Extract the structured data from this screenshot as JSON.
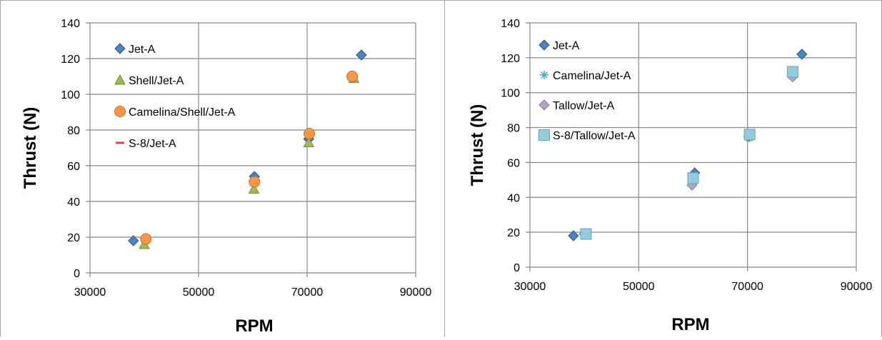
{
  "chart_data": [
    {
      "type": "scatter",
      "title": "",
      "xlabel": "RPM",
      "ylabel": "Thrust (N)",
      "xlim": [
        30000,
        90000
      ],
      "ylim": [
        0,
        140
      ],
      "xticks": [
        30000,
        50000,
        70000,
        90000
      ],
      "yticks": [
        0,
        20,
        40,
        60,
        80,
        100,
        120,
        140
      ],
      "grid": true,
      "legend_position": "top-left inside",
      "series": [
        {
          "name": "Jet-A",
          "marker": "diamond",
          "color": "#4f81bd",
          "points": [
            [
              38000,
              18
            ],
            [
              60300,
              54
            ],
            [
              70300,
              75
            ],
            [
              80000,
              122
            ]
          ]
        },
        {
          "name": "Shell/Jet-A",
          "marker": "triangle",
          "color": "#9bbb59",
          "points": [
            [
              40000,
              16
            ],
            [
              60200,
              47
            ],
            [
              70300,
              73
            ],
            [
              78600,
              109
            ]
          ]
        },
        {
          "name": "Camelina/Shell/Jet-A",
          "marker": "circle",
          "color": "#f79646",
          "points": [
            [
              40300,
              19
            ],
            [
              60300,
              51
            ],
            [
              70400,
              78
            ],
            [
              78300,
              110
            ]
          ]
        },
        {
          "name": "S-8/Jet-A",
          "marker": "dash",
          "color": "#c0504d",
          "points": []
        }
      ]
    },
    {
      "type": "scatter",
      "title": "",
      "xlabel": "RPM",
      "ylabel": "Thrust (N)",
      "xlim": [
        30000,
        90000
      ],
      "ylim": [
        0,
        140
      ],
      "xticks": [
        30000,
        50000,
        70000,
        90000
      ],
      "yticks": [
        0,
        20,
        40,
        60,
        80,
        100,
        120,
        140
      ],
      "grid": true,
      "legend_position": "top-left inside",
      "series": [
        {
          "name": "Jet-A",
          "marker": "diamond",
          "color": "#4f81bd",
          "points": [
            [
              38000,
              18
            ],
            [
              60300,
              54
            ],
            [
              70300,
              75
            ],
            [
              80000,
              122
            ]
          ]
        },
        {
          "name": "Camelina/Jet-A",
          "marker": "star",
          "color": "#4bacc6",
          "points": [
            [
              40000,
              19
            ],
            [
              60000,
              49
            ],
            [
              70300,
              74
            ],
            [
              78500,
              111
            ]
          ]
        },
        {
          "name": "Tallow/Jet-A",
          "marker": "diamond",
          "color": "#b3a2c7",
          "points": [
            [
              40000,
              19
            ],
            [
              59800,
              47
            ],
            [
              70200,
              75
            ],
            [
              78300,
              109
            ]
          ]
        },
        {
          "name": "S-8/Tallow/Jet-A",
          "marker": "square",
          "color": "#93cddd",
          "points": [
            [
              40300,
              19
            ],
            [
              60000,
              51
            ],
            [
              70400,
              76
            ],
            [
              78300,
              112
            ]
          ]
        }
      ]
    }
  ]
}
